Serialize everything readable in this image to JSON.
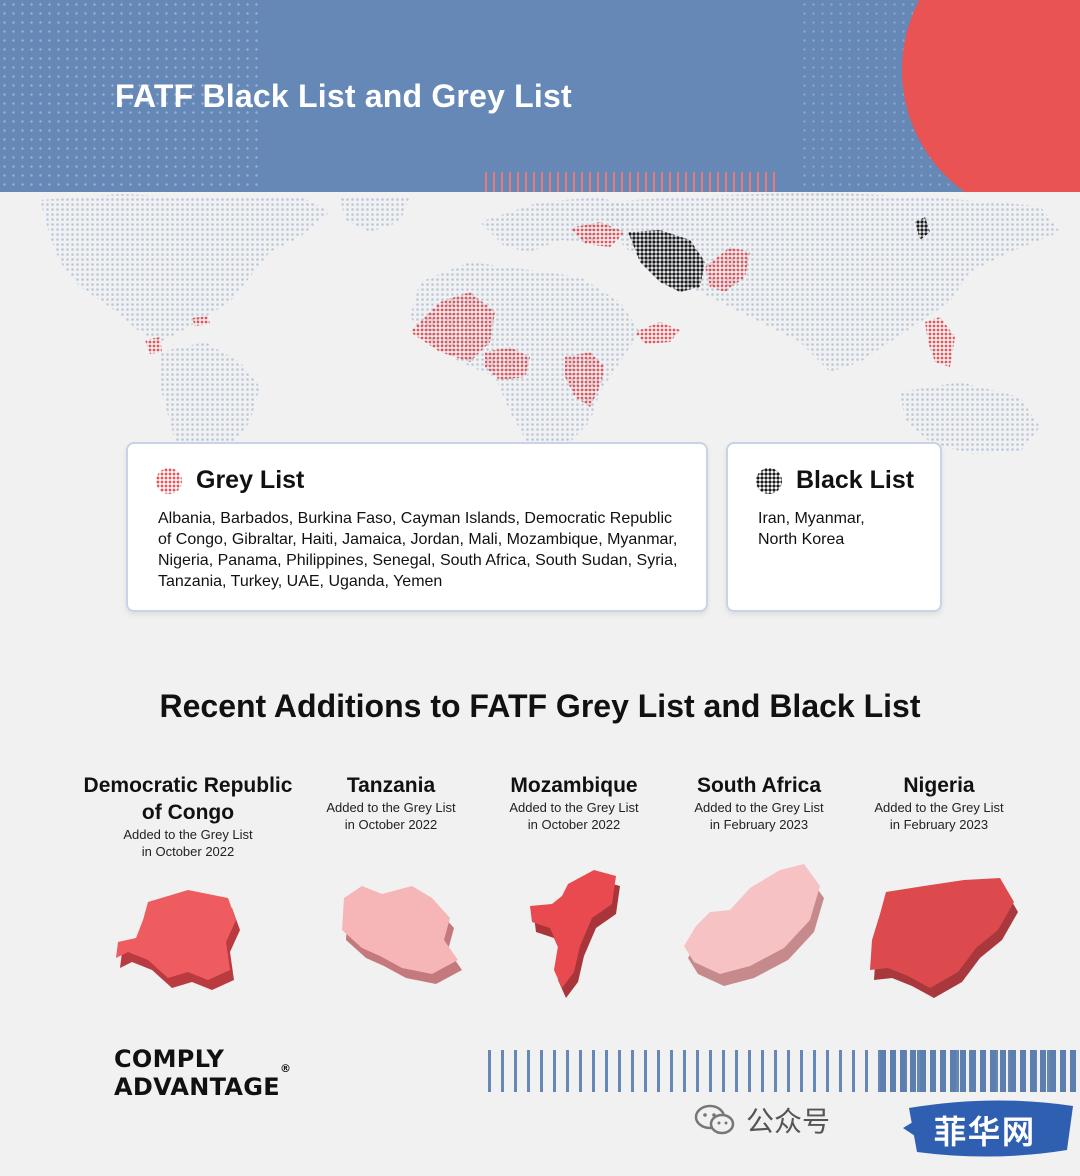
{
  "header": {
    "title": "FATF Black List and Grey List"
  },
  "legend": {
    "grey": {
      "title": "Grey List",
      "countries": "Albania, Barbados, Burkina Faso, Cayman Islands, Democratic Republic of Congo, Gibraltar, Haiti, Jamaica, Jordan, Mali, Mozambique, Myanmar, Nigeria, Panama, Philippines, Senegal, South Africa, South Sudan, Syria, Tanzania, Turkey, UAE, Uganda, Yemen",
      "color": "#e2555a"
    },
    "black": {
      "title": "Black List",
      "countries": "Iran, Myanmar, North Korea",
      "color": "#1b1b1b"
    }
  },
  "recent": {
    "title": "Recent Additions to FATF Grey List and Black List",
    "countries": [
      {
        "name": "Democratic Republic of Congo",
        "note_line1": "Added to the Grey List",
        "note_line2": "in October 2022",
        "color": "#ee5c60"
      },
      {
        "name": "Tanzania",
        "note_line1": "Added to the Grey List",
        "note_line2": "in October 2022",
        "color": "#f6b5b6"
      },
      {
        "name": "Mozambique",
        "note_line1": "Added to the Grey List",
        "note_line2": "in October 2022",
        "color": "#e94a4f"
      },
      {
        "name": "South Africa",
        "note_line1": "Added to the Grey List",
        "note_line2": "in February 2023",
        "color": "#f7c2c3"
      },
      {
        "name": "Nigeria",
        "note_line1": "Added to the Grey List",
        "note_line2": "in February 2023",
        "color": "#dc4a4e"
      }
    ]
  },
  "footer": {
    "logo_line1": "COMPLY",
    "logo_line2": "ADVANTAGE",
    "logo_mark": "®",
    "wechat_label": "公众号",
    "watermark": "菲华网"
  },
  "colors": {
    "header_bg": "#6688b6",
    "accent_red": "#e95353",
    "map_dots": "#b9c7dc"
  }
}
